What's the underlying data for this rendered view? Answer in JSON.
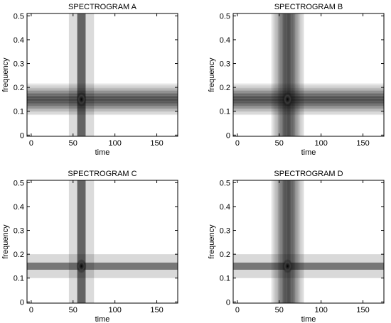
{
  "chart_data": [
    {
      "type": "heatmap",
      "title": "SPECTROGRAM A",
      "xlabel": "time",
      "ylabel": "frequency",
      "xlim": [
        -5,
        175
      ],
      "ylim": [
        -0.005,
        0.51
      ],
      "xticks": [
        0,
        50,
        100,
        150
      ],
      "yticks": [
        0,
        0.1,
        0.2,
        0.3,
        0.4,
        0.5
      ],
      "xtick_labels": [
        "0",
        "50",
        "100",
        "150"
      ],
      "ytick_labels": [
        "0",
        "0.1",
        "0.2",
        "0.3",
        "0.4",
        "0.5"
      ],
      "vertical_band": {
        "center_time": 60,
        "bands": [
          {
            "from": 45,
            "to": 75,
            "intensity": 0.14
          },
          {
            "from": 55,
            "to": 65,
            "intensity": 0.55
          }
        ]
      },
      "horizontal_band": {
        "center_frequency": 0.15,
        "profile": "smooth",
        "halfwidth": 0.05,
        "peak_intensity": 0.6
      },
      "peak": {
        "time": 60,
        "frequency": 0.15,
        "intensity": 1.0
      }
    },
    {
      "type": "heatmap",
      "title": "SPECTROGRAM B",
      "xlabel": "time",
      "ylabel": "frequency",
      "xlim": [
        -5,
        175
      ],
      "ylim": [
        -0.005,
        0.51
      ],
      "xticks": [
        0,
        50,
        100,
        150
      ],
      "yticks": [
        0,
        0.1,
        0.2,
        0.3,
        0.4,
        0.5
      ],
      "xtick_labels": [
        "0",
        "50",
        "100",
        "150"
      ],
      "ytick_labels": [
        "0",
        "0.1",
        "0.2",
        "0.3",
        "0.4",
        "0.5"
      ],
      "vertical_band": {
        "center_time": 60,
        "profile": "smooth",
        "halfwidth": 15,
        "peak_intensity": 0.6
      },
      "horizontal_band": {
        "center_frequency": 0.15,
        "profile": "smooth",
        "halfwidth": 0.05,
        "peak_intensity": 0.6
      },
      "peak": {
        "time": 60,
        "frequency": 0.15,
        "intensity": 1.0
      }
    },
    {
      "type": "heatmap",
      "title": "SPECTROGRAM C",
      "xlabel": "time",
      "ylabel": "frequency",
      "xlim": [
        -5,
        175
      ],
      "ylim": [
        -0.005,
        0.51
      ],
      "xticks": [
        0,
        50,
        100,
        150
      ],
      "yticks": [
        0,
        0.1,
        0.2,
        0.3,
        0.4,
        0.5
      ],
      "xtick_labels": [
        "0",
        "50",
        "100",
        "150"
      ],
      "ytick_labels": [
        "0",
        "0.1",
        "0.2",
        "0.3",
        "0.4",
        "0.5"
      ],
      "vertical_band": {
        "center_time": 60,
        "bands": [
          {
            "from": 45,
            "to": 75,
            "intensity": 0.14
          },
          {
            "from": 55,
            "to": 65,
            "intensity": 0.55
          }
        ]
      },
      "horizontal_band": {
        "center_frequency": 0.15,
        "bands": [
          {
            "from": 0.1,
            "to": 0.2,
            "intensity": 0.15
          },
          {
            "from": 0.135,
            "to": 0.165,
            "intensity": 0.45
          }
        ]
      },
      "peak": {
        "time": 60,
        "frequency": 0.15,
        "intensity": 1.0
      }
    },
    {
      "type": "heatmap",
      "title": "SPECTROGRAM D",
      "xlabel": "time",
      "ylabel": "frequency",
      "xlim": [
        -5,
        175
      ],
      "ylim": [
        -0.005,
        0.51
      ],
      "xticks": [
        0,
        50,
        100,
        150
      ],
      "yticks": [
        0,
        0.1,
        0.2,
        0.3,
        0.4,
        0.5
      ],
      "xtick_labels": [
        "0",
        "50",
        "100",
        "150"
      ],
      "ytick_labels": [
        "0",
        "0.1",
        "0.2",
        "0.3",
        "0.4",
        "0.5"
      ],
      "vertical_band": {
        "center_time": 60,
        "profile": "smooth",
        "halfwidth": 15,
        "peak_intensity": 0.6
      },
      "horizontal_band": {
        "center_frequency": 0.15,
        "bands": [
          {
            "from": 0.1,
            "to": 0.2,
            "intensity": 0.15
          },
          {
            "from": 0.135,
            "to": 0.165,
            "intensity": 0.45
          }
        ]
      },
      "peak": {
        "time": 60,
        "frequency": 0.15,
        "intensity": 1.0
      }
    }
  ]
}
